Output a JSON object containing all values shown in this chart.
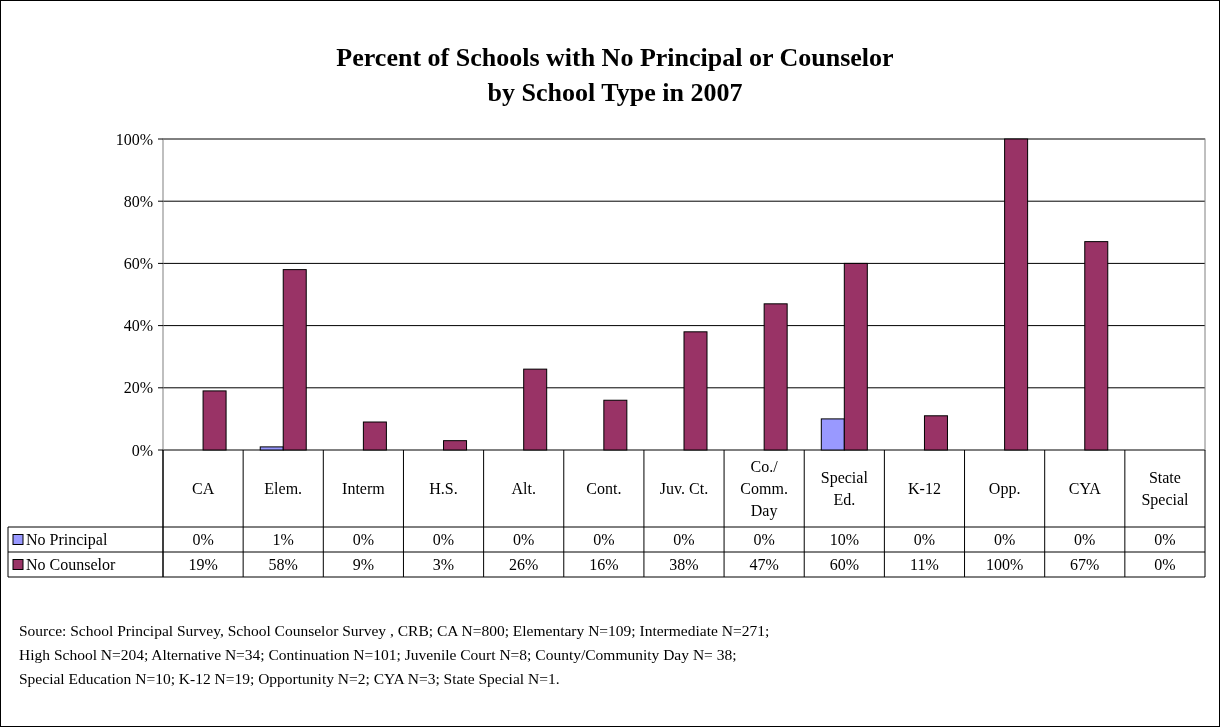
{
  "chart_data": {
    "type": "bar",
    "title": "Percent of Schools with No Principal or Counselor\nby School Type in 2007",
    "categories": [
      "CA",
      "Elem.",
      "Interm",
      "H.S.",
      "Alt.",
      "Cont.",
      "Juv. Ct.",
      "Co./ Comm. Day",
      "Special Ed.",
      "K-12",
      "Opp.",
      "CYA",
      "State Special"
    ],
    "series": [
      {
        "name": "No Principal",
        "color": "#9999ff",
        "values": [
          0,
          1,
          0,
          0,
          0,
          0,
          0,
          0,
          10,
          0,
          0,
          0,
          0
        ],
        "value_labels": [
          "0%",
          "1%",
          "0%",
          "0%",
          "0%",
          "0%",
          "0%",
          "0%",
          "10%",
          "0%",
          "0%",
          "0%",
          "0%"
        ]
      },
      {
        "name": "No Counselor",
        "color": "#993366",
        "values": [
          19,
          58,
          9,
          3,
          26,
          16,
          38,
          47,
          60,
          11,
          100,
          67,
          0
        ],
        "value_labels": [
          "19%",
          "58%",
          "9%",
          "3%",
          "26%",
          "16%",
          "38%",
          "47%",
          "60%",
          "11%",
          "100%",
          "67%",
          "0%"
        ]
      }
    ],
    "ylim": [
      0,
      100
    ],
    "yticks": [
      {
        "value": 0,
        "label": "0%"
      },
      {
        "value": 20,
        "label": "20%"
      },
      {
        "value": 40,
        "label": "40%"
      },
      {
        "value": 60,
        "label": "60%"
      },
      {
        "value": 80,
        "label": "80%"
      },
      {
        "value": 100,
        "label": "100%"
      }
    ],
    "grid": "y",
    "legend": "bottom left",
    "annotations": [
      "Source: School Principal Survey, School Counselor Survey , CRB; CA N=800; Elementary N=109; Intermediate N=271;",
      "High School N=204; Alternative N=34; Continuation N=101; Juvenile Court N=8; County/Community Day N= 38;",
      "Special Education N=10; K-12 N=19; Opportunity N=2; CYA N=3; State Special N=1."
    ]
  }
}
